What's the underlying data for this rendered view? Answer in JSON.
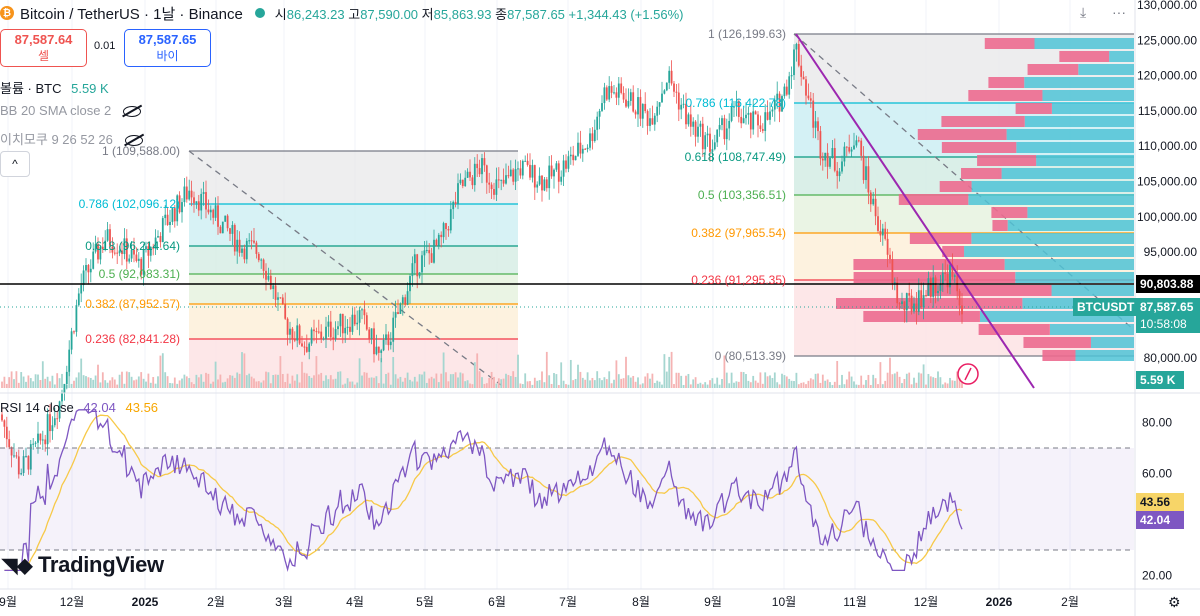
{
  "header": {
    "coin_symbol": "₿",
    "title": "Bitcoin / TetherUS · 1날 · Binance",
    "open_label": "시",
    "open": "86,243.23",
    "high_label": "고",
    "high": "87,590.00",
    "low_label": "저",
    "low": "85,863.93",
    "close_label": "종",
    "close": "87,587.65",
    "change": "+1,344.43 (+1.56%)"
  },
  "trade": {
    "sell_price": "87,587.64",
    "sell_label": "셀",
    "spread": "0.01",
    "buy_price": "87,587.65",
    "buy_label": "바이"
  },
  "indicators": {
    "volume_label": "볼륨 · BTC",
    "volume_value": "5.59 K",
    "bb_label": "BB 20 SMA close 2",
    "ichimoku_label": "이치모쿠 9 26 52 26",
    "collapse_icon": "^"
  },
  "price_axis": [
    "130,000.00",
    "125,000.00",
    "120,000.00",
    "115,000.00",
    "110,000.00",
    "105,000.00",
    "100,000.00",
    "95,000.00",
    "80,000.00"
  ],
  "rsi_axis": [
    "80.00",
    "60.00",
    "20.00"
  ],
  "time_axis": [
    "9월",
    "12월",
    "2025",
    "2월",
    "3월",
    "4월",
    "5월",
    "6월",
    "7월",
    "8월",
    "9월",
    "10월",
    "11월",
    "12월",
    "2026",
    "2월"
  ],
  "fib1": {
    "levels": [
      "1 (109,588.00)",
      "0.786 (102,096.12)",
      "0.618 (96,214.64)",
      "0.5 (92,083.31)",
      "0.382 (87,952.57)",
      "0.236 (82,841.28)"
    ]
  },
  "fib2": {
    "levels": [
      "1 (126,199.63)",
      "0.786 (116,422.78)",
      "0.618 (108,747.49)",
      "0.5 (103,356.51)",
      "0.382 (97,965.54)",
      "0.236 (91,295.35)",
      "0 (80,513.39)"
    ]
  },
  "tags": {
    "hline_price": "90,803.88",
    "symbol": "BTCUSDT",
    "last_price": "87,587.65",
    "countdown": "10:58:08",
    "volume": "5.59 K",
    "rsi_ma": "43.56",
    "rsi": "42.04"
  },
  "rsi_legend": {
    "label": "RSI 14 close",
    "rsi": "42.04",
    "ma": "43.56"
  },
  "brand": "TradingView",
  "colors": {
    "up": "#26a69a",
    "down": "#ef5350",
    "buy": "#2962ff",
    "fib_1": "#787b86",
    "fib_786": "#00bcd4",
    "fib_618": "#089981",
    "fib_5": "#4caf50",
    "fib_382": "#ff9800",
    "fib_236": "#f23645",
    "rsi": "#7e57c2",
    "rsi_ma": "#f7c948",
    "hline": "#000000"
  }
}
